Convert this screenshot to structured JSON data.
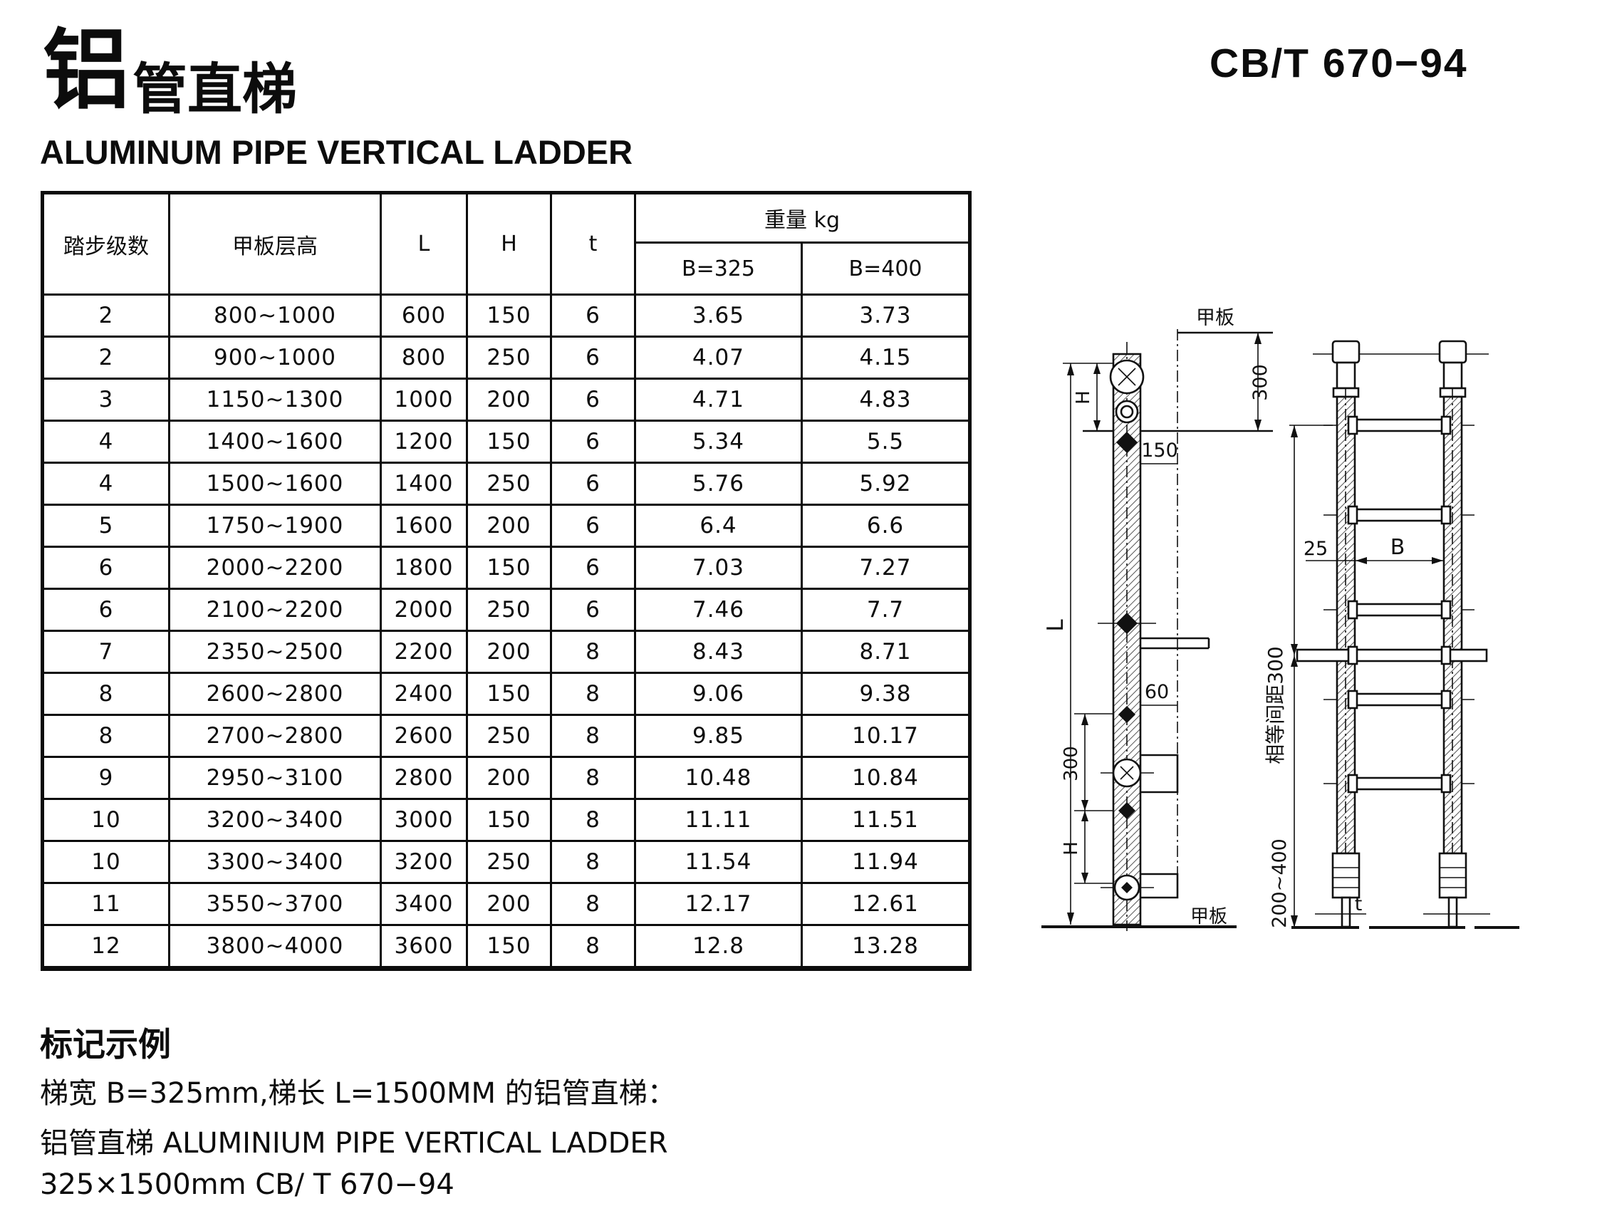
{
  "header": {
    "title_cn_big": "铝",
    "title_cn_rest": "管直梯",
    "standard_no": "CB/T 670−94",
    "title_en": "ALUMINUM PIPE VERTICAL LADDER"
  },
  "table": {
    "headers": {
      "steps": "踏步级数",
      "deck_height": "甲板层高",
      "L": "L",
      "H": "H",
      "t": "t",
      "weight": "重量 kg",
      "b325": "B=325",
      "b400": "B=400"
    },
    "rows": [
      [
        "2",
        "800~1000",
        "600",
        "150",
        "6",
        "3.65",
        "3.73"
      ],
      [
        "2",
        "900~1000",
        "800",
        "250",
        "6",
        "4.07",
        "4.15"
      ],
      [
        "3",
        "1150~1300",
        "1000",
        "200",
        "6",
        "4.71",
        "4.83"
      ],
      [
        "4",
        "1400~1600",
        "1200",
        "150",
        "6",
        "5.34",
        "5.5"
      ],
      [
        "4",
        "1500~1600",
        "1400",
        "250",
        "6",
        "5.76",
        "5.92"
      ],
      [
        "5",
        "1750~1900",
        "1600",
        "200",
        "6",
        "6.4",
        "6.6"
      ],
      [
        "6",
        "2000~2200",
        "1800",
        "150",
        "6",
        "7.03",
        "7.27"
      ],
      [
        "6",
        "2100~2200",
        "2000",
        "250",
        "6",
        "7.46",
        "7.7"
      ],
      [
        "7",
        "2350~2500",
        "2200",
        "200",
        "8",
        "8.43",
        "8.71"
      ],
      [
        "8",
        "2600~2800",
        "2400",
        "150",
        "8",
        "9.06",
        "9.38"
      ],
      [
        "8",
        "2700~2800",
        "2600",
        "250",
        "8",
        "9.85",
        "10.17"
      ],
      [
        "9",
        "2950~3100",
        "2800",
        "200",
        "8",
        "10.48",
        "10.84"
      ],
      [
        "10",
        "3200~3400",
        "3000",
        "150",
        "8",
        "11.11",
        "11.51"
      ],
      [
        "10",
        "3300~3400",
        "3200",
        "250",
        "8",
        "11.54",
        "11.94"
      ],
      [
        "11",
        "3550~3700",
        "3400",
        "200",
        "8",
        "12.17",
        "12.61"
      ],
      [
        "12",
        "3800~4000",
        "3600",
        "150",
        "8",
        "12.8",
        "13.28"
      ]
    ]
  },
  "figures": {
    "side_view": {
      "deck_top": "甲板",
      "dim_300_top": "300",
      "dim_150": "150",
      "dim_H_top": "H",
      "dim_L": "L",
      "dim_60": "60",
      "dim_300_bottom": "300",
      "dim_H_bottom": "H",
      "deck_bottom": "甲板"
    },
    "front_view": {
      "dim_25": "25",
      "dim_B": "B",
      "dim_spacing": "相等间距300",
      "dim_200_400": "200~400",
      "dim_t": "t"
    }
  },
  "notes": {
    "heading": "标记示例",
    "line1": "梯宽 B=325mm,梯长 L=1500MM 的铝管直梯：",
    "line2": "铝管直梯 ALUMINIUM PIPE VERTICAL LADDER",
    "line3": "325×1500mm CB/ T 670−94"
  }
}
